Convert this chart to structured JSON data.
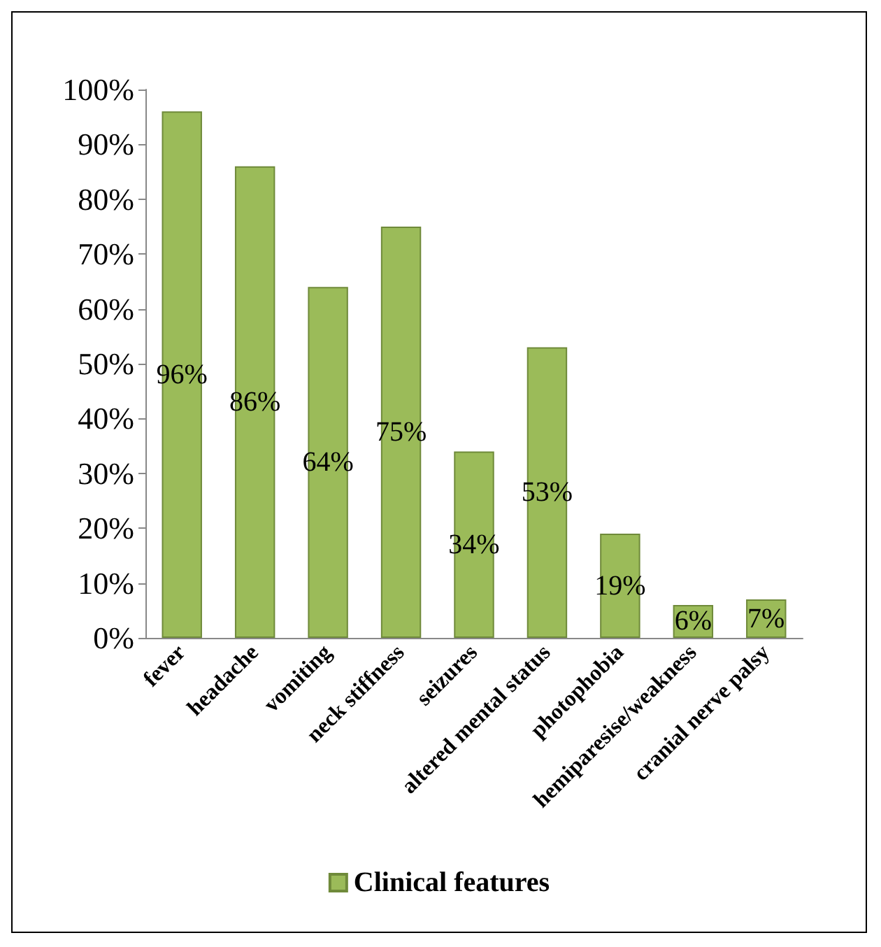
{
  "chart_data": {
    "type": "bar",
    "categories": [
      "fever",
      "headache",
      "vomiting",
      "neck stiffness",
      "seizures",
      "altered mental status",
      "photophobia",
      "hemiparesise/weakness",
      "cranial nerve palsy"
    ],
    "series": [
      {
        "name": "Clinical features",
        "color": "#9bbb59",
        "values": [
          96,
          86,
          64,
          75,
          34,
          53,
          19,
          6,
          7
        ],
        "value_labels": [
          "96%",
          "86%",
          "64%",
          "75%",
          "34%",
          "53%",
          "19%",
          "6%",
          "7%"
        ]
      }
    ],
    "ylim": [
      0,
      100
    ],
    "yticks": [
      {
        "value": 0,
        "label": "0%"
      },
      {
        "value": 10,
        "label": "10%"
      },
      {
        "value": 20,
        "label": "20%"
      },
      {
        "value": 30,
        "label": "30%"
      },
      {
        "value": 40,
        "label": "40%"
      },
      {
        "value": 50,
        "label": "50%"
      },
      {
        "value": 60,
        "label": "60%"
      },
      {
        "value": 70,
        "label": "70%"
      },
      {
        "value": 80,
        "label": "80%"
      },
      {
        "value": 90,
        "label": "90%"
      },
      {
        "value": 100,
        "label": "100%"
      }
    ],
    "legend": "bottom"
  }
}
